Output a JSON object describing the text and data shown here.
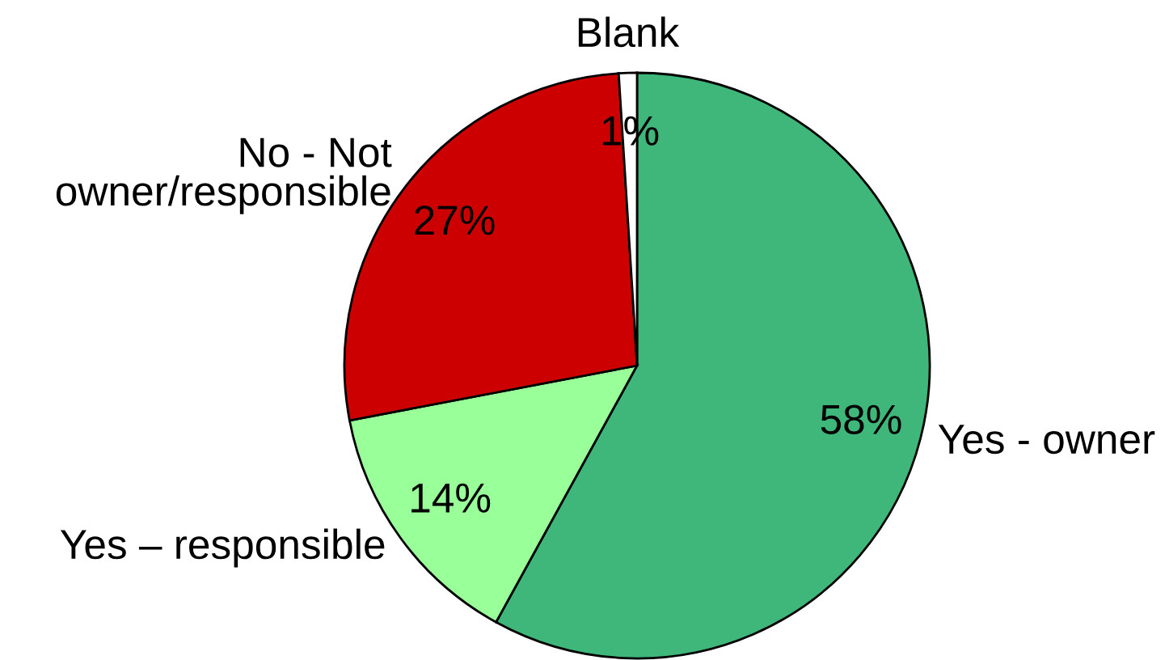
{
  "chart_data": {
    "type": "pie",
    "categories": [
      "Yes - owner",
      "Yes – responsible",
      "No - Not\nowner/responsible",
      "Blank"
    ],
    "values": [
      58,
      14,
      27,
      1
    ],
    "colors": [
      "#3fb77b",
      "#99ff99",
      "#cc0000",
      "#ffffff"
    ],
    "value_labels": [
      "58%",
      "14%",
      "27%",
      "1%"
    ]
  }
}
